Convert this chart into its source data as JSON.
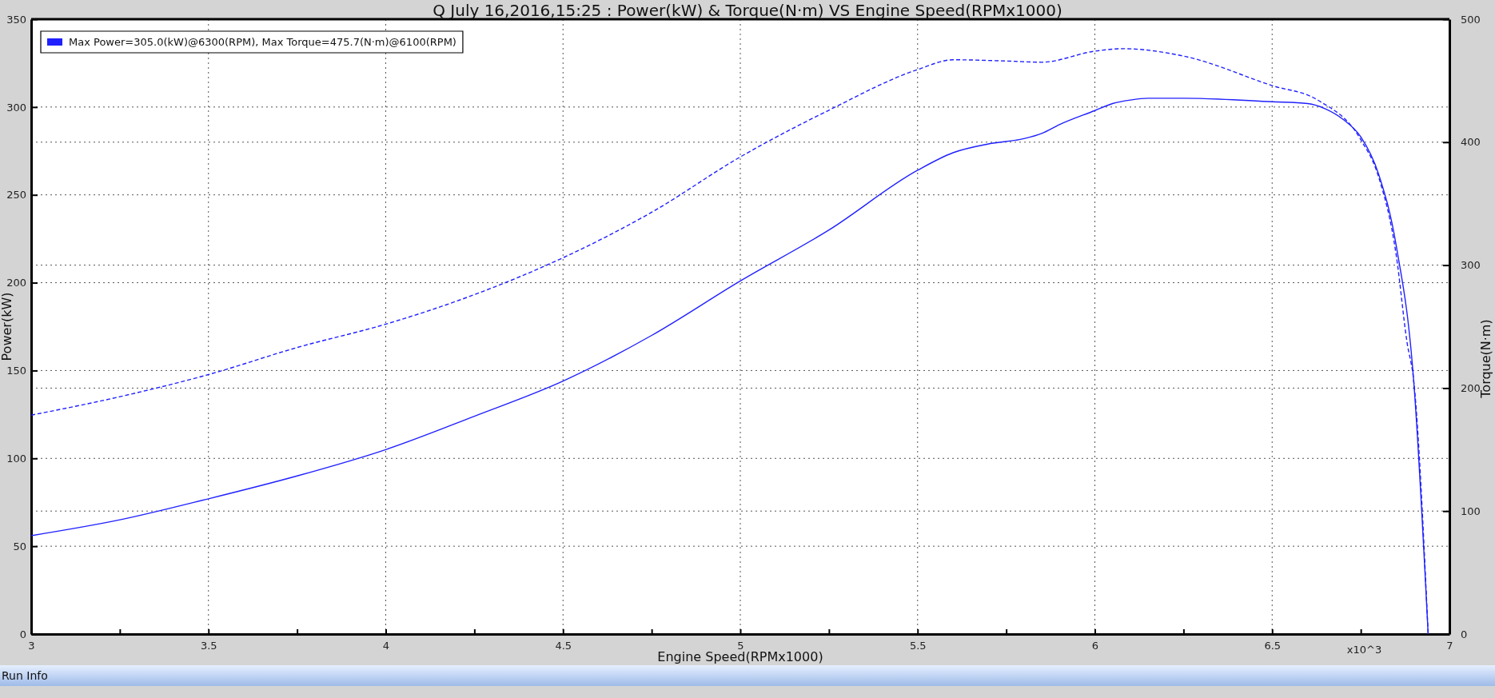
{
  "chart_data": {
    "type": "line",
    "title": "Q July 16,2016,15:25  : Power(kW) & Torque(N·m) VS Engine Speed(RPMx1000)",
    "xlabel": "Engine Speed(RPMx1000)",
    "ylabel": "Power(kW)",
    "y2label": "Torque(N·m)",
    "xlim": [
      3,
      7
    ],
    "xticks": [
      3,
      {
        "value": 3.25,
        "label": null
      },
      3.5,
      {
        "value": 3.75,
        "label": null
      },
      4,
      {
        "value": 4.25,
        "label": null
      },
      4.5,
      {
        "value": 4.75,
        "label": null
      },
      5,
      {
        "value": 5.25,
        "label": null
      },
      5.5,
      {
        "value": 5.75,
        "label": null
      },
      6,
      {
        "value": 6.25,
        "label": null
      },
      6.5,
      {
        "value": 6.75,
        "label": null
      },
      7
    ],
    "ylim": [
      0,
      350
    ],
    "yticks": [
      0,
      50,
      100,
      150,
      200,
      250,
      300,
      350
    ],
    "y2lim": [
      0,
      500
    ],
    "y2ticks": [
      0,
      100,
      200,
      300,
      400,
      500
    ],
    "grid": true,
    "legend": "top left",
    "annotations": [
      "x10^3",
      "Run Info"
    ],
    "series": [
      {
        "name": "Max Power=305.0(kW)@6300(RPM), Max Torque=475.7(N·m)@6100(RPM)",
        "color": "#2020ff",
        "line_style": "solid",
        "x": [
          3,
          3.25,
          3.5,
          3.75,
          4,
          4.25,
          4.5,
          4.75,
          5,
          5.25,
          5.5,
          5.6,
          5.7,
          5.8,
          5.85,
          5.9,
          6,
          6.05,
          6.1,
          6.15,
          6.25,
          6.5,
          6.6,
          6.65,
          6.7,
          6.75,
          6.8,
          6.85,
          6.9,
          6.94
        ],
        "values": [
          56,
          65,
          77,
          90,
          105,
          124,
          144,
          170,
          201,
          230,
          264,
          274,
          279,
          282,
          285,
          290,
          298,
          302,
          304,
          305,
          305,
          303,
          302,
          299,
          293,
          283,
          262,
          221,
          142,
          0
        ]
      },
      {
        "color": "#2020ff",
        "line_style": "dashed",
        "axis": "y2",
        "x": [
          3,
          3.25,
          3.5,
          3.75,
          4,
          4.25,
          4.5,
          4.75,
          5,
          5.25,
          5.5,
          5.6,
          5.75,
          5.85,
          6,
          6.08,
          6.25,
          6.5,
          6.63,
          6.75,
          6.8,
          6.85,
          6.88,
          6.9,
          6.94
        ],
        "values": [
          178,
          193,
          211,
          233,
          252,
          276,
          306,
          343,
          388,
          426,
          459,
          467,
          466,
          465,
          474,
          476,
          470,
          446,
          434,
          402,
          372,
          308,
          238,
          204,
          0
        ]
      }
    ]
  }
}
